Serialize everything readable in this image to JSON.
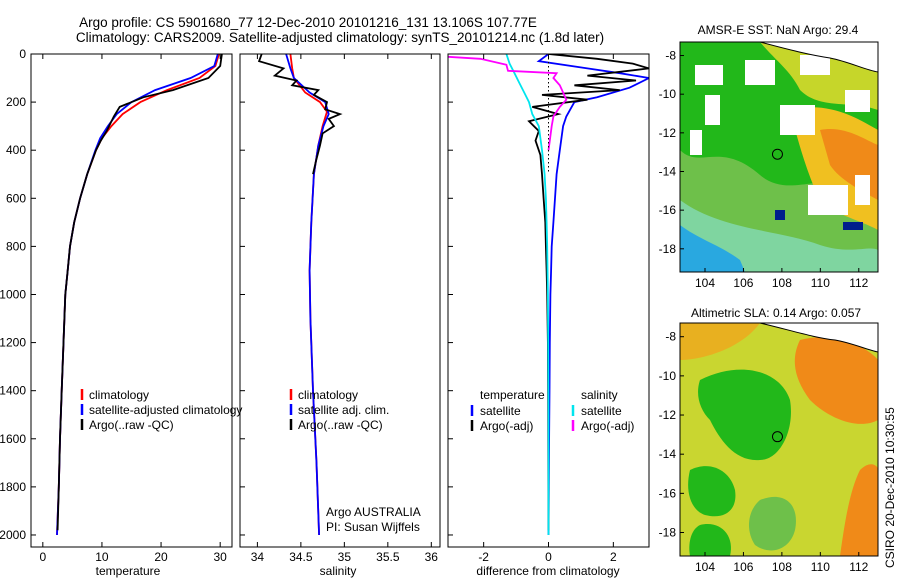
{
  "header": {
    "title_line1": "Argo profile: CS 5901680_77 12-Dec-2010 20101216_131 13.106S 107.77E",
    "title_line2": "Climatology: CARS2009. Satellite-adjusted climatology: synTS_20101214.nc (1.8d later)"
  },
  "credit": "CSIRO 20-Dec-2010 10:30:55",
  "colors": {
    "climatology": "#ff0000",
    "satellite": "#0000ff",
    "argo": "#000000",
    "salinity_satellite": "#00e5ee",
    "salinity_argo": "#ff00ff"
  },
  "chart_data": [
    {
      "type": "line",
      "name": "temperature-profile",
      "xlabel": "temperature",
      "xlim": [
        -2,
        32
      ],
      "ylim": [
        2050,
        0
      ],
      "xticks": [
        "0",
        "10",
        "20",
        "30"
      ],
      "yticks": [
        "0",
        "200",
        "400",
        "600",
        "800",
        "1000",
        "1200",
        "1400",
        "1600",
        "1800",
        "2000"
      ],
      "legend": {
        "items": [
          {
            "label": "climatology",
            "color": "#ff0000"
          },
          {
            "label": "satellite-adjusted climatology",
            "color": "#0000ff"
          },
          {
            "label": "Argo(..raw -QC)",
            "color": "#000000"
          }
        ]
      },
      "series": [
        {
          "color": "#ff0000",
          "points": [
            [
              29.8,
              0
            ],
            [
              29.2,
              50
            ],
            [
              26.5,
              100
            ],
            [
              21,
              150
            ],
            [
              16.5,
              200
            ],
            [
              13.5,
              250
            ],
            [
              11.6,
              300
            ],
            [
              10,
              350
            ],
            [
              9,
              400
            ],
            [
              7.5,
              500
            ],
            [
              6.3,
              600
            ],
            [
              5.3,
              700
            ],
            [
              4.6,
              800
            ],
            [
              4.2,
              900
            ],
            [
              3.8,
              1000
            ],
            [
              3.5,
              1200
            ],
            [
              3.2,
              1400
            ],
            [
              2.9,
              1600
            ],
            [
              2.7,
              1800
            ],
            [
              2.4,
              2000
            ]
          ]
        },
        {
          "color": "#0000ff",
          "points": [
            [
              29.6,
              0
            ],
            [
              29,
              50
            ],
            [
              25,
              100
            ],
            [
              19,
              150
            ],
            [
              15,
              200
            ],
            [
              12.5,
              250
            ],
            [
              11,
              300
            ],
            [
              9.7,
              350
            ],
            [
              8.9,
              400
            ],
            [
              7.5,
              500
            ],
            [
              6.3,
              600
            ],
            [
              5.3,
              700
            ],
            [
              4.6,
              800
            ],
            [
              4.2,
              900
            ],
            [
              3.8,
              1000
            ],
            [
              3.5,
              1200
            ],
            [
              3.2,
              1400
            ],
            [
              2.9,
              1600
            ],
            [
              2.7,
              1800
            ],
            [
              2.4,
              2000
            ]
          ]
        },
        {
          "color": "#000000",
          "points": [
            [
              30.3,
              0
            ],
            [
              30,
              50
            ],
            [
              28,
              100
            ],
            [
              22,
              150
            ],
            [
              17,
              180
            ],
            [
              13,
              220
            ],
            [
              12,
              260
            ],
            [
              10.8,
              320
            ],
            [
              9.8,
              360
            ],
            [
              9,
              400
            ],
            [
              7.5,
              500
            ],
            [
              6.3,
              600
            ],
            [
              5.3,
              700
            ],
            [
              4.6,
              800
            ],
            [
              4.2,
              900
            ],
            [
              3.8,
              1000
            ],
            [
              3.5,
              1200
            ],
            [
              3.2,
              1400
            ],
            [
              2.9,
              1600
            ],
            [
              2.7,
              1800
            ],
            [
              2.5,
              1980
            ]
          ]
        }
      ]
    },
    {
      "type": "line",
      "name": "salinity-profile",
      "xlabel": "salinity",
      "xlim": [
        33.8,
        36.1
      ],
      "ylim": [
        2050,
        0
      ],
      "xticks": [
        "34",
        "34.5",
        "35",
        "35.5",
        "36"
      ],
      "legend": {
        "items": [
          {
            "label": "climatology",
            "color": "#ff0000"
          },
          {
            "label": "satellite adj. clim.",
            "color": "#0000ff"
          },
          {
            "label": "Argo(..raw -QC)",
            "color": "#000000"
          }
        ]
      },
      "annotation": [
        "Argo AUSTRALIA",
        "PI: Susan Wijffels"
      ],
      "series": [
        {
          "color": "#ff0000",
          "points": [
            [
              34.38,
              0
            ],
            [
              34.4,
              60
            ],
            [
              34.42,
              100
            ],
            [
              34.55,
              160
            ],
            [
              34.72,
              200
            ],
            [
              34.8,
              240
            ],
            [
              34.75,
              300
            ],
            [
              34.7,
              380
            ],
            [
              34.65,
              500
            ],
            [
              34.62,
              700
            ],
            [
              34.6,
              900
            ],
            [
              34.61,
              1100
            ],
            [
              34.64,
              1400
            ],
            [
              34.68,
              1700
            ],
            [
              34.71,
              2000
            ]
          ]
        },
        {
          "color": "#0000ff",
          "points": [
            [
              34.33,
              0
            ],
            [
              34.38,
              60
            ],
            [
              34.42,
              100
            ],
            [
              34.6,
              160
            ],
            [
              34.78,
              200
            ],
            [
              34.82,
              250
            ],
            [
              34.76,
              300
            ],
            [
              34.7,
              380
            ],
            [
              34.65,
              500
            ],
            [
              34.62,
              700
            ],
            [
              34.6,
              900
            ],
            [
              34.61,
              1100
            ],
            [
              34.64,
              1400
            ],
            [
              34.68,
              1700
            ],
            [
              34.71,
              2000
            ]
          ]
        },
        {
          "color": "#000000",
          "points": [
            [
              34.05,
              0
            ],
            [
              34.02,
              30
            ],
            [
              34.3,
              60
            ],
            [
              34.2,
              90
            ],
            [
              34.45,
              110
            ],
            [
              34.4,
              130
            ],
            [
              34.7,
              150
            ],
            [
              34.65,
              170
            ],
            [
              34.8,
              200
            ],
            [
              34.78,
              230
            ],
            [
              34.95,
              250
            ],
            [
              34.82,
              270
            ],
            [
              34.88,
              300
            ],
            [
              34.75,
              330
            ],
            [
              34.72,
              380
            ],
            [
              34.67,
              450
            ],
            [
              34.64,
              500
            ]
          ]
        }
      ]
    },
    {
      "type": "line",
      "name": "difference-profile",
      "xlabel": "difference from climatology",
      "xlim": [
        -3.1,
        3.1
      ],
      "ylim": [
        2050,
        0
      ],
      "xticks": [
        "-2",
        "0",
        "2"
      ],
      "legend": {
        "groups": [
          {
            "header": "temperature",
            "items": [
              {
                "label": "satellite",
                "color": "#0000ff"
              },
              {
                "label": "Argo(-adj)",
                "color": "#000000"
              }
            ]
          },
          {
            "header": "salinity",
            "items": [
              {
                "label": "satellite",
                "color": "#00e5ee"
              },
              {
                "label": "Argo(-adj)",
                "color": "#ff00ff"
              }
            ]
          }
        ]
      },
      "series": [
        {
          "color": "#0000ff",
          "points": [
            [
              0,
              0
            ],
            [
              -0.3,
              30
            ],
            [
              1.2,
              60
            ],
            [
              2.2,
              80
            ],
            [
              3.1,
              100
            ],
            [
              2.5,
              140
            ],
            [
              1.5,
              180
            ],
            [
              0.8,
              200
            ],
            [
              0.55,
              260
            ],
            [
              0.45,
              300
            ],
            [
              0.35,
              400
            ],
            [
              0.25,
              500
            ],
            [
              0.2,
              600
            ],
            [
              0.15,
              700
            ],
            [
              0.1,
              800
            ],
            [
              0.08,
              900
            ],
            [
              0.06,
              1000
            ],
            [
              0.04,
              1200
            ],
            [
              0.03,
              1400
            ],
            [
              0.02,
              1600
            ],
            [
              0.01,
              1800
            ],
            [
              0,
              2000
            ]
          ]
        },
        {
          "color": "#000000",
          "points": [
            [
              0,
              0
            ],
            [
              1.5,
              20
            ],
            [
              2.6,
              40
            ],
            [
              3.1,
              60
            ],
            [
              1.2,
              90
            ],
            [
              2.7,
              110
            ],
            [
              0.8,
              130
            ],
            [
              2.2,
              150
            ],
            [
              -0.2,
              170
            ],
            [
              1.2,
              190
            ],
            [
              -0.5,
              220
            ],
            [
              0.3,
              250
            ],
            [
              -0.6,
              280
            ],
            [
              -0.3,
              320
            ],
            [
              -0.4,
              360
            ],
            [
              -0.25,
              420
            ],
            [
              -0.2,
              500
            ],
            [
              -0.15,
              600
            ],
            [
              -0.1,
              700
            ],
            [
              -0.08,
              800
            ],
            [
              -0.06,
              900
            ],
            [
              -0.04,
              1000
            ],
            [
              -0.02,
              1200
            ],
            [
              -0.01,
              1500
            ],
            [
              0,
              1980
            ]
          ]
        },
        {
          "color": "#00e5ee",
          "points": [
            [
              -1.3,
              0
            ],
            [
              -1.2,
              40
            ],
            [
              -1.05,
              80
            ],
            [
              -0.9,
              120
            ],
            [
              -0.75,
              160
            ],
            [
              -0.6,
              200
            ],
            [
              -0.5,
              250
            ],
            [
              -0.3,
              300
            ],
            [
              -0.2,
              400
            ],
            [
              -0.12,
              500
            ],
            [
              -0.08,
              600
            ],
            [
              -0.06,
              700
            ],
            [
              -0.04,
              800
            ],
            [
              -0.02,
              1000
            ],
            [
              -0.01,
              1200
            ],
            [
              0,
              1500
            ],
            [
              0,
              2000
            ]
          ]
        },
        {
          "color": "#ff00ff",
          "points": [
            [
              -4.5,
              0
            ],
            [
              -2.1,
              20
            ],
            [
              -1.3,
              45
            ],
            [
              -1.25,
              70
            ],
            [
              0.25,
              80
            ],
            [
              0.15,
              100
            ],
            [
              0.35,
              130
            ],
            [
              0.45,
              160
            ],
            [
              0.55,
              190
            ],
            [
              0.35,
              220
            ],
            [
              0.15,
              260
            ],
            [
              0.1,
              300
            ],
            [
              0.05,
              350
            ],
            [
              0,
              400
            ]
          ]
        }
      ]
    }
  ],
  "maps": [
    {
      "name": "sst-map",
      "title": "AMSR-E SST: NaN Argo: 29.4",
      "xticks": [
        "104",
        "106",
        "108",
        "110",
        "112"
      ],
      "yticks": [
        "-8",
        "-10",
        "-12",
        "-14",
        "-16",
        "-18"
      ],
      "xlim": [
        102.7,
        113.0
      ],
      "ylim": [
        -19.2,
        -7.3
      ],
      "marker": {
        "lon": 107.77,
        "lat": -13.106
      }
    },
    {
      "name": "sla-map",
      "title": "Altimetric SLA: 0.14 Argo: 0.057",
      "xticks": [
        "104",
        "106",
        "108",
        "110",
        "112"
      ],
      "yticks": [
        "-8",
        "-10",
        "-12",
        "-14",
        "-16",
        "-18"
      ],
      "xlim": [
        102.7,
        113.0
      ],
      "ylim": [
        -19.2,
        -7.3
      ],
      "marker": {
        "lon": 107.77,
        "lat": -13.106
      }
    }
  ]
}
